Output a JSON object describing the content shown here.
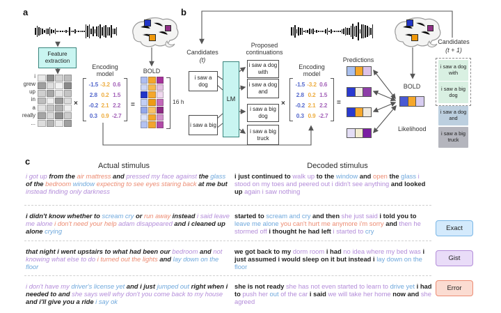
{
  "colors": {
    "exact": "#6fa8dc",
    "gist": "#b38cd9",
    "error": "#ec8b72",
    "highlight_cyan": "#c9f5f1"
  },
  "panel_a": {
    "label": "a",
    "feature_extraction": "Feature extraction",
    "words": [
      "i",
      "grew",
      "up",
      "in",
      "a",
      "really",
      "..."
    ],
    "times": "×",
    "equals": "=",
    "encoding_model_label": "Encoding model",
    "bold_label": "BOLD",
    "hours_label": "16 h",
    "stimulus_matrix": [
      [
        "#e8e8e8",
        "#8f8f8f",
        "#d2d2d2",
        "#bdbdbd"
      ],
      [
        "#9f9f9f",
        "#dedede",
        "#f2f2f2",
        "#8a8a8a"
      ],
      [
        "#cfcfcf",
        "#a8a8a8",
        "#e4e4e4",
        "#c4c4c4"
      ],
      [
        "#bdbdbd",
        "#efefef",
        "#999999",
        "#dcdcdc"
      ],
      [
        "#e2e2e2",
        "#c6c6c6",
        "#b0b0b0",
        "#efefef"
      ],
      [
        "#a5a5a5",
        "#d8d8d8",
        "#8f8f8f",
        "#cccccc"
      ],
      [
        "#dddddd",
        "#b5b5b5",
        "#e9e9e9",
        "#a0a0a0"
      ]
    ],
    "bold_matrix": [
      [
        "#aebdf0",
        "#f5a72b",
        "#a6309b"
      ],
      [
        "#ccd6f6",
        "#f7b94e",
        "#e4bfe2"
      ],
      [
        "#2236c8",
        "#f5a72b",
        "#f0d9ef"
      ],
      [
        "#c2cef4",
        "#ef9b13",
        "#c468ba"
      ],
      [
        "#93a7ea",
        "#f8c369",
        "#8f2a85"
      ],
      [
        "#dbe2fa",
        "#f5a72b",
        "#d392cd"
      ],
      [
        "#b4c2f1",
        "#f2a52f",
        "#b14aa7"
      ]
    ]
  },
  "encoding_matrix": {
    "rows": [
      [
        "-1.5",
        "-3.2",
        "0.6"
      ],
      [
        "2.8",
        "0.2",
        "1.5"
      ],
      [
        "-0.2",
        "2.1",
        "2.2"
      ],
      [
        "0.3",
        "0.9",
        "-2.7"
      ]
    ],
    "col_colors": [
      "#5468cc",
      "#edac3f",
      "#a361b8"
    ]
  },
  "panel_b": {
    "label": "b",
    "candidates_label": "Candidates",
    "candidates_sub": "(t)",
    "candidate_boxes": [
      "i saw a dog",
      "i saw a big"
    ],
    "lm_label": "LM",
    "proposed_label": "Proposed continuations",
    "continuations": [
      "i saw a dog with",
      "i saw a dog and",
      "i saw a big dog",
      "i saw a big truck"
    ],
    "times": "×",
    "equals": "=",
    "encoding_model_label": "Encoding model",
    "predictions_label": "Predictions",
    "prediction_strips": [
      [
        "#a9c0ee",
        "#f5a72b",
        "#dcc2e8"
      ],
      [
        "#2a3ad0",
        "#f2ede2",
        "#8e3fa8"
      ],
      [
        "#2a3ad0",
        "#f5a72b",
        "#efe9df"
      ],
      [
        "#e4def6",
        "#f3ecd0",
        "#7b1fa2"
      ]
    ],
    "bold_label": "BOLD",
    "bold_strip": [
      "#4a5ad3",
      "#f5a72b",
      "#d8cdf1"
    ],
    "likelihood_label": "Likelihood",
    "next_candidates_label": "Candidates",
    "next_candidates_sub": "(t + 1)",
    "next_candidates": [
      {
        "text": "i saw a dog with",
        "bg": "#d9f0e2"
      },
      {
        "text": "i saw a big dog",
        "bg": "#d9f0e2"
      },
      {
        "text": "i saw a dog and",
        "bg": "#bccfdf"
      },
      {
        "text": "i saw a big truck",
        "bg": "#b4b5bd"
      }
    ]
  },
  "panel_c": {
    "label": "c",
    "actual_header": "Actual stimulus",
    "decoded_header": "Decoded stimulus",
    "legend": [
      {
        "label": "Exact",
        "fill": "#d4eafc",
        "border": "#79b6e6"
      },
      {
        "label": "Gist",
        "fill": "#e9dcf8",
        "border": "#b38cd9"
      },
      {
        "label": "Error",
        "fill": "#fbdcd2",
        "border": "#ec8b72"
      }
    ],
    "rows": [
      {
        "actual": [
          {
            "t": "i got up",
            "c": "gist"
          },
          {
            "t": "from the",
            "c": "plain"
          },
          {
            "t": "air mattress",
            "c": "error"
          },
          {
            "t": "and",
            "c": "plain"
          },
          {
            "t": "pressed my face against",
            "c": "gist"
          },
          {
            "t": "the",
            "c": "plain"
          },
          {
            "t": "glass",
            "c": "exact"
          },
          {
            "t": "of the",
            "c": "plain"
          },
          {
            "t": "bedroom",
            "c": "error"
          },
          {
            "t": "window",
            "c": "exact"
          },
          {
            "t": "expecting to see eyes staring back",
            "c": "error"
          },
          {
            "t": "at me but",
            "c": "plain"
          },
          {
            "t": "instead finding only darkness",
            "c": "gist"
          }
        ],
        "decoded": [
          {
            "t": "i just continued to",
            "c": "plain"
          },
          {
            "t": "walk up",
            "c": "gist"
          },
          {
            "t": "to the",
            "c": "plain"
          },
          {
            "t": "window",
            "c": "exact"
          },
          {
            "t": "and",
            "c": "plain"
          },
          {
            "t": "open",
            "c": "error"
          },
          {
            "t": "the",
            "c": "plain"
          },
          {
            "t": "glass",
            "c": "exact"
          },
          {
            "t": "i stood on my toes and peered out i didn't see anything",
            "c": "gist"
          },
          {
            "t": "and looked up",
            "c": "plain"
          },
          {
            "t": "again i saw nothing",
            "c": "gist"
          }
        ]
      },
      {
        "actual": [
          {
            "t": "i didn't know whether to",
            "c": "plain"
          },
          {
            "t": "scream cry",
            "c": "exact"
          },
          {
            "t": "or",
            "c": "plain"
          },
          {
            "t": "run away",
            "c": "error"
          },
          {
            "t": "instead",
            "c": "plain"
          },
          {
            "t": "i said leave me alone",
            "c": "gist"
          },
          {
            "t": "i don't need your help",
            "c": "error"
          },
          {
            "t": "adam disappeared",
            "c": "gist"
          },
          {
            "t": "and i cleaned up alone",
            "c": "plain"
          },
          {
            "t": "crying",
            "c": "exact"
          }
        ],
        "decoded": [
          {
            "t": "started to",
            "c": "plain"
          },
          {
            "t": "scream and cry",
            "c": "exact"
          },
          {
            "t": "and then",
            "c": "plain"
          },
          {
            "t": "she just said",
            "c": "gist"
          },
          {
            "t": "i told you to",
            "c": "plain"
          },
          {
            "t": "leave me alone",
            "c": "exact"
          },
          {
            "t": "you can't hurt me anymore i'm sorry",
            "c": "error"
          },
          {
            "t": "and",
            "c": "plain"
          },
          {
            "t": "then he stormed off",
            "c": "gist"
          },
          {
            "t": "i thought he had left",
            "c": "plain"
          },
          {
            "t": "i started to",
            "c": "gist"
          },
          {
            "t": "cry",
            "c": "exact"
          }
        ]
      },
      {
        "actual": [
          {
            "t": "that night i went upstairs to what had been our",
            "c": "plain"
          },
          {
            "t": "bedroom",
            "c": "gist"
          },
          {
            "t": "and",
            "c": "plain"
          },
          {
            "t": "not knowing what else to do",
            "c": "gist"
          },
          {
            "t": "i turned out the lights",
            "c": "error"
          },
          {
            "t": "and",
            "c": "plain"
          },
          {
            "t": "lay down on the floor",
            "c": "exact"
          }
        ],
        "decoded": [
          {
            "t": "we got back to my",
            "c": "plain"
          },
          {
            "t": "dorm room",
            "c": "gist"
          },
          {
            "t": "i had",
            "c": "plain"
          },
          {
            "t": "no idea where my bed was",
            "c": "gist"
          },
          {
            "t": "i just assumed i would sleep on it but instead i",
            "c": "plain"
          },
          {
            "t": "lay down on the floor",
            "c": "exact"
          }
        ]
      },
      {
        "actual": [
          {
            "t": "i don't have my",
            "c": "gist"
          },
          {
            "t": "driver's license yet",
            "c": "exact"
          },
          {
            "t": "and i just",
            "c": "plain"
          },
          {
            "t": "jumped out",
            "c": "exact"
          },
          {
            "t": "right when i needed to and",
            "c": "plain"
          },
          {
            "t": "she says well why don't you come back to my house",
            "c": "gist"
          },
          {
            "t": "and i'll give you a ride",
            "c": "plain"
          },
          {
            "t": "i say ok",
            "c": "exact"
          }
        ],
        "decoded": [
          {
            "t": "she is not ready",
            "c": "plain"
          },
          {
            "t": "she has not even started to learn to",
            "c": "gist"
          },
          {
            "t": "drive yet",
            "c": "exact"
          },
          {
            "t": "i had to",
            "c": "plain"
          },
          {
            "t": "push her",
            "c": "gist"
          },
          {
            "t": "out",
            "c": "exact"
          },
          {
            "t": "of the car",
            "c": "gist"
          },
          {
            "t": "i said",
            "c": "plain"
          },
          {
            "t": "we will take her home",
            "c": "gist"
          },
          {
            "t": "now and",
            "c": "plain"
          },
          {
            "t": "she agreed",
            "c": "gist"
          }
        ]
      }
    ]
  }
}
